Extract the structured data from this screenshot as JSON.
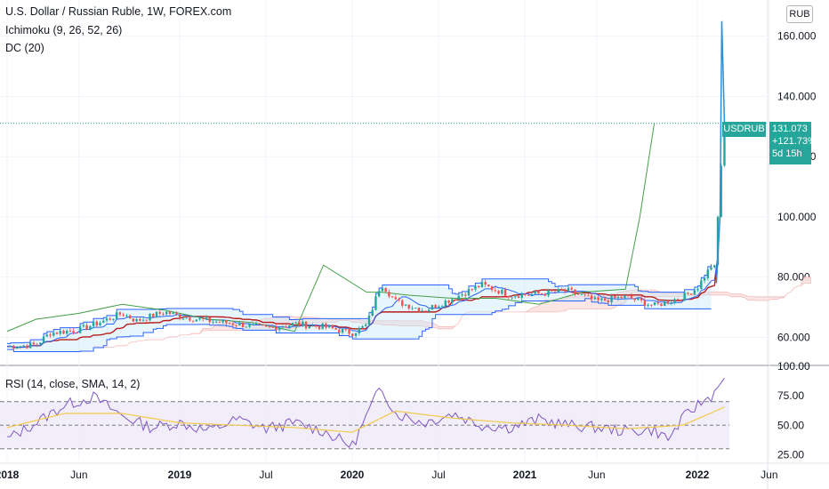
{
  "header": {
    "symbol_title": "U.S. Dollar / Russian Ruble, 1W, FOREX.com",
    "ichimoku_label": "Ichimoku (9, 26, 52, 26)",
    "donchian_label": "DC (20)",
    "rsi_label": "RSI (14, close, SMA, 14, 2)",
    "currency_button": "RUB"
  },
  "price_tag": {
    "symbol": "USDRUB",
    "price": "131.073",
    "change": "+121.73%",
    "countdown": "5d 15h"
  },
  "colors": {
    "up": "#26a69a",
    "down": "#ef5350",
    "tenkan": "#2962ff",
    "kijun": "#b71c1c",
    "chikou": "#43a047",
    "cloud_fill": "#fbe4e3",
    "donchian_band": "#2962ff",
    "donchian_fill": "#bbe5f8",
    "rsi_line": "#7e57c2",
    "rsi_ma": "#f2c94c",
    "price_line": "#2b90d9"
  },
  "chart_data": [
    {
      "type": "candlestick",
      "title": "U.S. Dollar / Russian Ruble, 1W, FOREX.com",
      "x_tick_labels": [
        "2018",
        "Jun",
        "2019",
        "Jul",
        "2020",
        "Jul",
        "2021",
        "Jun",
        "2022",
        "Jun"
      ],
      "y_tick_labels": [
        "160.000",
        "140.000",
        "120.000",
        "100.000",
        "80.000",
        "60.000"
      ],
      "ylim": [
        51,
        172
      ],
      "last_price": 131.073,
      "grid": true,
      "price_path": {
        "x": [
          "2018-01",
          "2018-03",
          "2018-04",
          "2018-06",
          "2018-08",
          "2018-09",
          "2018-10",
          "2018-12",
          "2019-01",
          "2019-03",
          "2019-05",
          "2019-07",
          "2019-09",
          "2019-11",
          "2020-01",
          "2020-02",
          "2020-03",
          "2020-04",
          "2020-06",
          "2020-08",
          "2020-10",
          "2020-12",
          "2021-02",
          "2021-04",
          "2021-06",
          "2021-08",
          "2021-10",
          "2021-11",
          "2021-12",
          "2022-01",
          "2022-02",
          "2022-03"
        ],
        "y": [
          57,
          57.5,
          61.5,
          62.5,
          66,
          68,
          65.5,
          68.5,
          67,
          65.5,
          64.5,
          63,
          64.5,
          63.5,
          61.5,
          64,
          78,
          72,
          69,
          73,
          77.5,
          74,
          74.5,
          75.5,
          72,
          73.5,
          70.5,
          72,
          73.5,
          76.5,
          84,
          131.073
        ]
      },
      "ichimoku": {
        "chikou_x": [
          "2018-01",
          "2018-03",
          "2018-06",
          "2018-09",
          "2018-12",
          "2019-03",
          "2019-06",
          "2019-09",
          "2019-11",
          "2020-01",
          "2020-02",
          "2020-03",
          "2020-05",
          "2020-08",
          "2020-11",
          "2021-02",
          "2021-05",
          "2021-08",
          "2021-09",
          "2021-10"
        ],
        "chikou_y": [
          62,
          66,
          68,
          71,
          69,
          66,
          65,
          62,
          84,
          78,
          75,
          75,
          74,
          73,
          73,
          71,
          75,
          76,
          100,
          131
        ]
      }
    },
    {
      "type": "line",
      "title": "RSI (14, close, SMA, 14, 2)",
      "y_tick_labels": [
        "100.00",
        "75.00",
        "50.00",
        "25.00"
      ],
      "ylim": [
        20,
        100
      ],
      "bands": [
        30,
        50,
        70
      ],
      "series": [
        {
          "name": "RSI",
          "x": [
            "2018-01",
            "2018-03",
            "2018-05",
            "2018-07",
            "2018-09",
            "2018-11",
            "2019-01",
            "2019-03",
            "2019-05",
            "2019-07",
            "2019-09",
            "2019-11",
            "2020-01",
            "2020-03",
            "2020-04",
            "2020-06",
            "2020-08",
            "2020-10",
            "2020-12",
            "2021-02",
            "2021-04",
            "2021-06",
            "2021-08",
            "2021-10",
            "2021-11",
            "2021-12",
            "2022-01",
            "2022-02",
            "2022-03"
          ],
          "y": [
            38,
            52,
            67,
            74,
            58,
            48,
            52,
            45,
            55,
            47,
            52,
            45,
            32,
            83,
            60,
            52,
            60,
            50,
            48,
            55,
            50,
            48,
            45,
            46,
            38,
            56,
            67,
            75,
            92
          ]
        },
        {
          "name": "SMA",
          "x": [
            "2018-01",
            "2018-05",
            "2018-09",
            "2019-01",
            "2019-05",
            "2019-09",
            "2020-01",
            "2020-04",
            "2020-08",
            "2020-12",
            "2021-04",
            "2021-08",
            "2021-12",
            "2022-03"
          ],
          "y": [
            48,
            60,
            60,
            52,
            50,
            48,
            44,
            62,
            56,
            52,
            50,
            47,
            50,
            66
          ]
        }
      ]
    }
  ]
}
